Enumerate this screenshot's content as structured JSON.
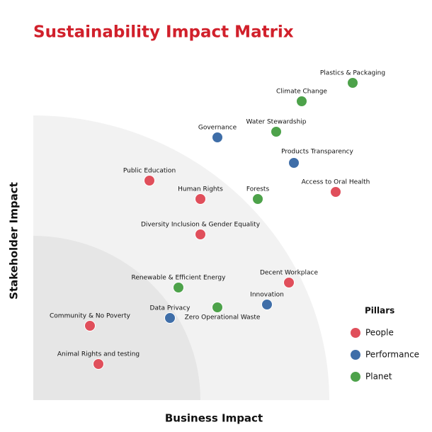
{
  "chart_data": {
    "type": "scatter",
    "title": "Sustainability Impact Matrix",
    "x_label": "Business Impact",
    "y_label": "Stakeholder Impact",
    "xlim": [
      0,
      100
    ],
    "ylim": [
      0,
      100
    ],
    "legend_title": "Pillars",
    "legend": "right",
    "series": [
      {
        "name": "People",
        "color": "#e04f5b",
        "labels": [
          "Access to Oral Health",
          "Public Education",
          "Human Rights",
          "Diversity Inclusion & Gender Equality",
          "Decent Workplace",
          "Community & No Poverty",
          "Animal Rights and testing"
        ],
        "x": [
          85.4,
          32.8,
          47.2,
          47.2,
          72.2,
          16,
          18.4
        ],
        "values": [
          58.8,
          62,
          56.8,
          46.8,
          33.2,
          21,
          10.2
        ]
      },
      {
        "name": "Performance",
        "color": "#3f6ea8",
        "labels": [
          "Governance",
          "Products Transparency",
          "Innovation",
          "Data Privacy"
        ],
        "x": [
          52,
          73.6,
          66,
          38.6
        ],
        "values": [
          74.2,
          67,
          27,
          23.2
        ]
      },
      {
        "name": "Planet",
        "color": "#4da24a",
        "labels": [
          "Plastics & Packaging",
          "Climate Change",
          "Water Stewardship",
          "Forests",
          "Renewable & Efficient Energy",
          "Zero Operational Waste"
        ],
        "x": [
          90.2,
          75.8,
          68.6,
          63.4,
          41,
          52
        ],
        "values": [
          89.6,
          84.4,
          75.8,
          56.8,
          31.8,
          26.2
        ]
      }
    ]
  }
}
